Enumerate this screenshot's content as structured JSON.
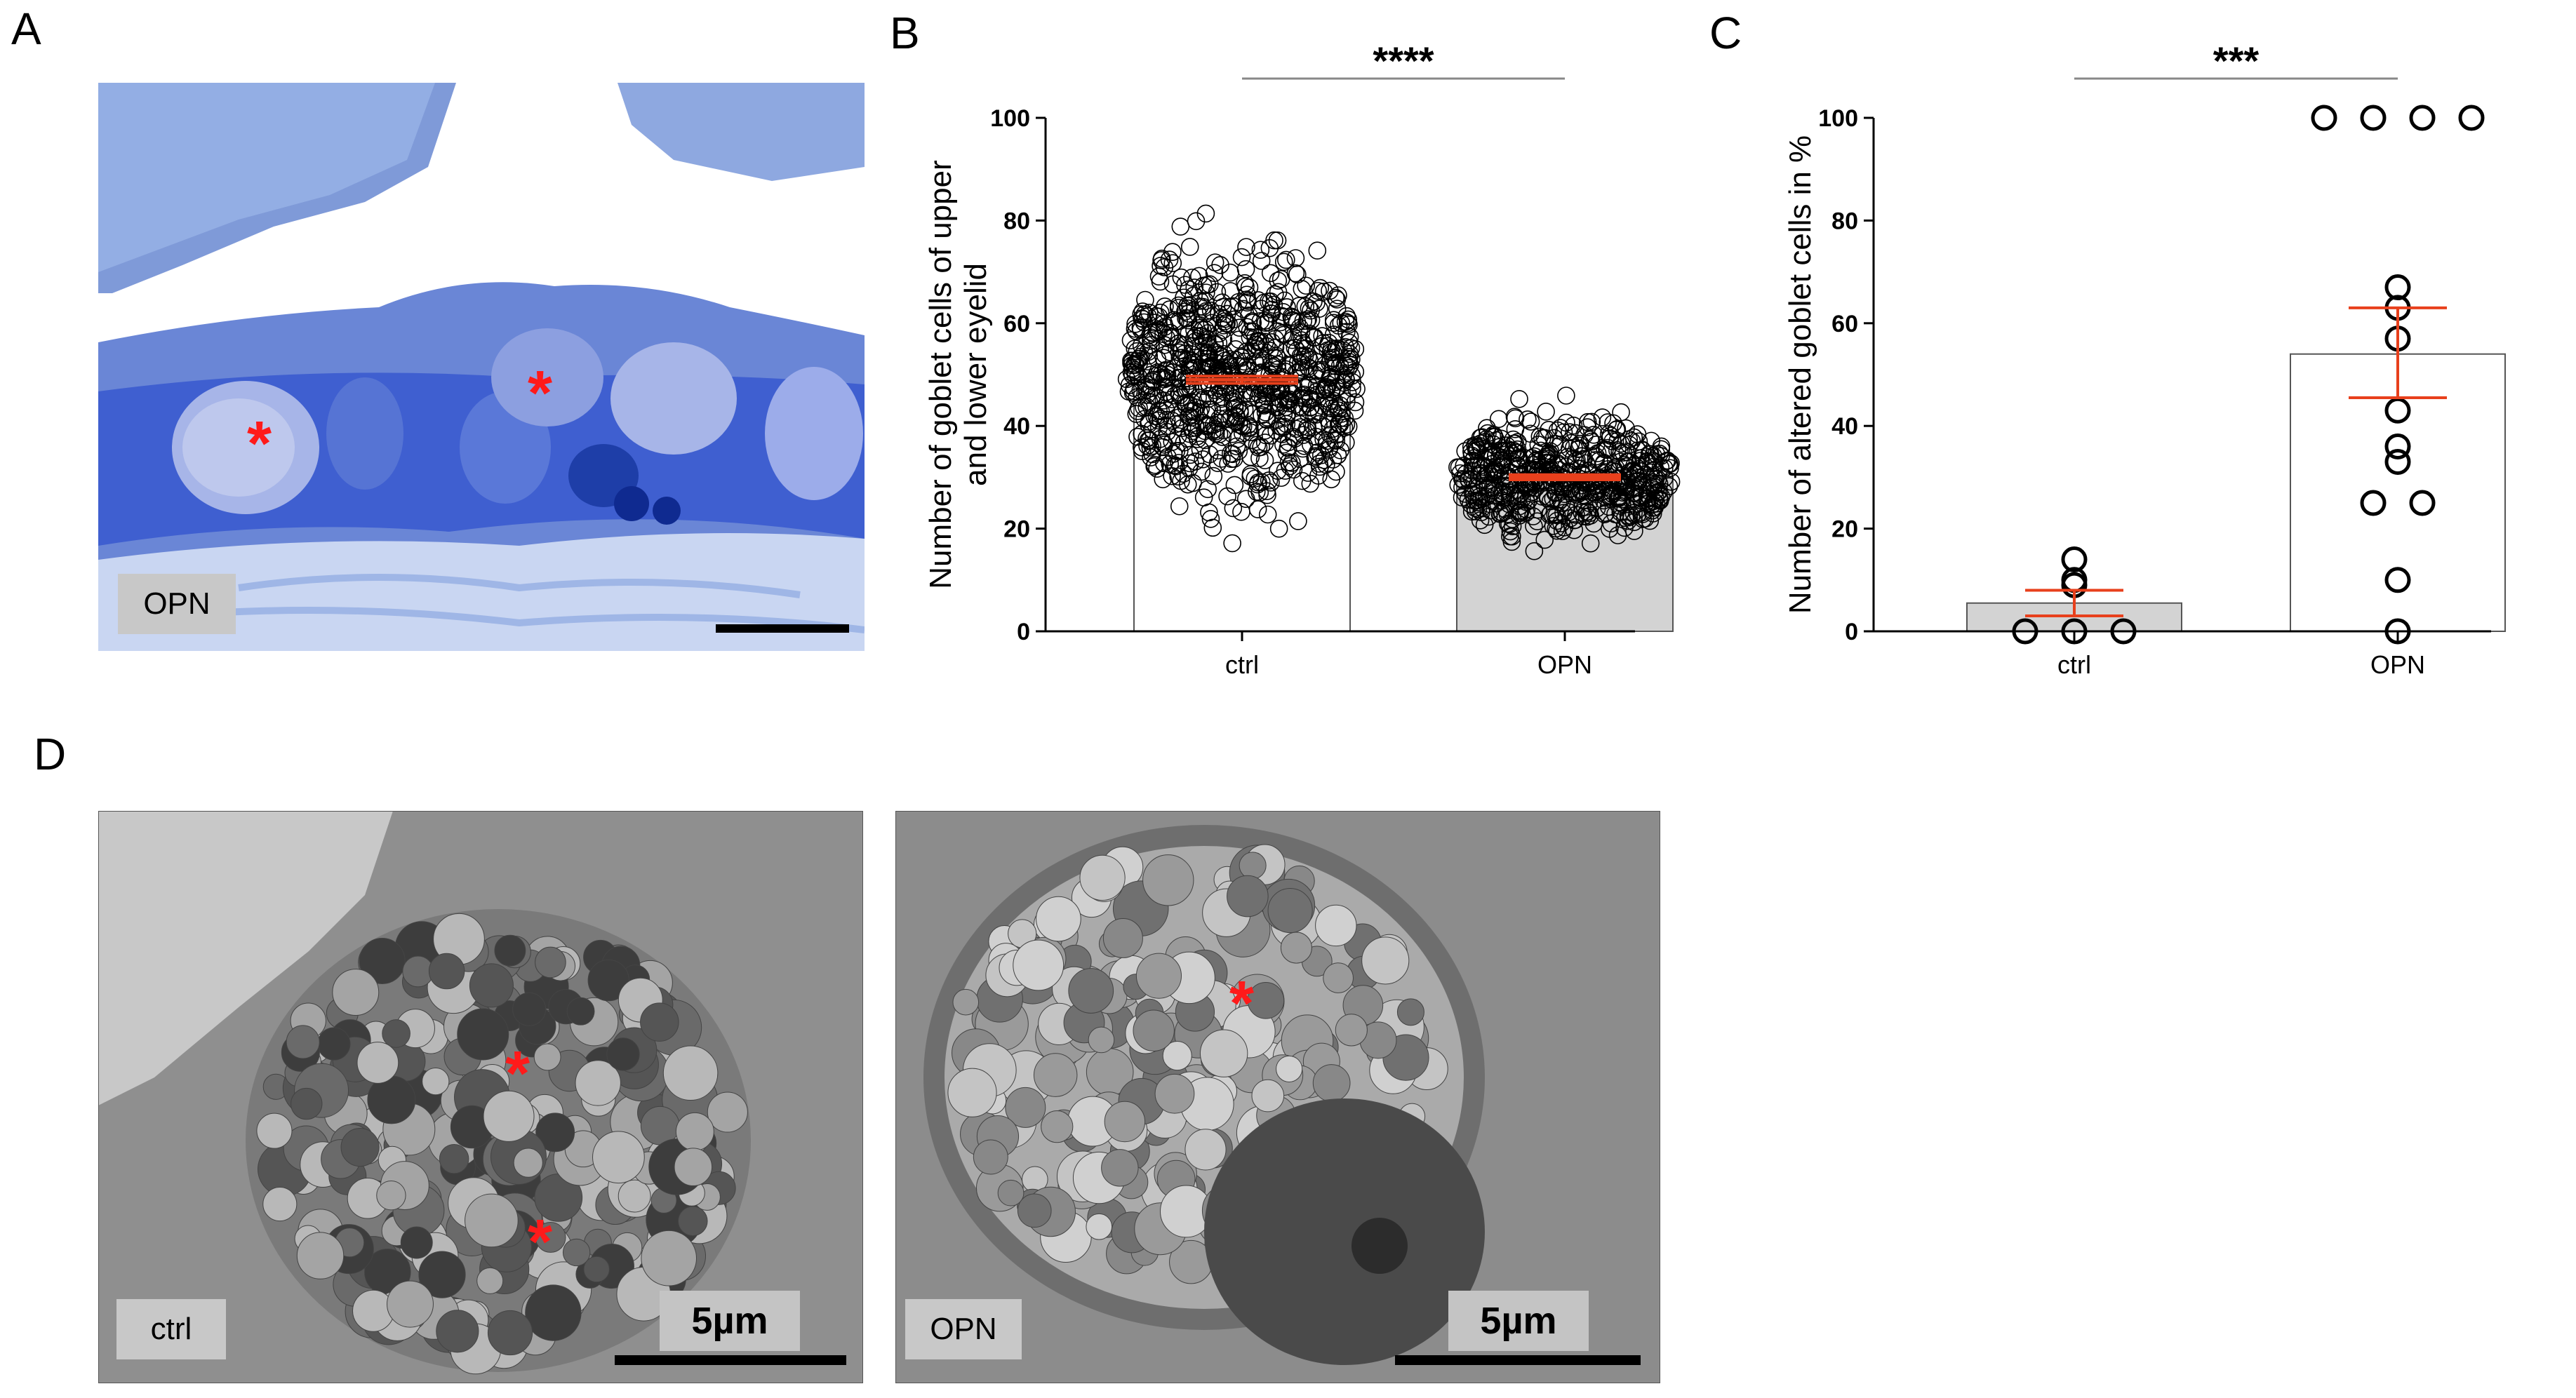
{
  "panel_letters": {
    "a": "A",
    "b": "B",
    "c": "C",
    "d": "D"
  },
  "panel_a": {
    "tag": "OPN",
    "asterisk": "*"
  },
  "panel_d": {
    "left_tag": "ctrl",
    "right_tag": "OPN",
    "scale_text": "5µm",
    "asterisk": "*"
  },
  "colors": {
    "tissue_blue": "#3f5fd0",
    "light_blue": "#9fb6e6",
    "tem_grey": "#9a9a9a",
    "accent_red": "#ff1a1a",
    "bar_grey": "#d3d3d3"
  },
  "chart_data": [
    {
      "type": "bar",
      "panel": "B",
      "categories": [
        "ctrl",
        "OPN"
      ],
      "bar_values": [
        49,
        30
      ],
      "error": [
        [
          48.3,
          49.7
        ],
        [
          29.5,
          30.5
        ]
      ],
      "ylabel_line1": "Number of goblet cells of upper",
      "ylabel_line2": "and lower eyelid",
      "ylim": [
        0,
        100
      ],
      "yticks": [
        "0",
        "20",
        "40",
        "60",
        "80",
        "100"
      ],
      "significance": "****",
      "bar_colors": [
        "#ffffff",
        "#d3d3d3"
      ],
      "points_note_ranges": [
        [
          5,
          96
        ],
        [
          9,
          76
        ]
      ]
    },
    {
      "type": "bar",
      "panel": "C",
      "categories": [
        "ctrl",
        "OPN"
      ],
      "bar_values": [
        5.5,
        54
      ],
      "error": [
        [
          3,
          8
        ],
        [
          45.5,
          63
        ]
      ],
      "points": [
        [
          14,
          9,
          10,
          0,
          0,
          0
        ],
        [
          100,
          100,
          100,
          100,
          67,
          63,
          57,
          43,
          36,
          33,
          25,
          25,
          10,
          0
        ]
      ],
      "ylabel": "Number of altered goblet cells in %",
      "ylim": [
        0,
        100
      ],
      "yticks": [
        "0",
        "20",
        "40",
        "60",
        "80",
        "100"
      ],
      "significance": "***",
      "bar_colors": [
        "#d3d3d3",
        "#ffffff"
      ]
    }
  ]
}
